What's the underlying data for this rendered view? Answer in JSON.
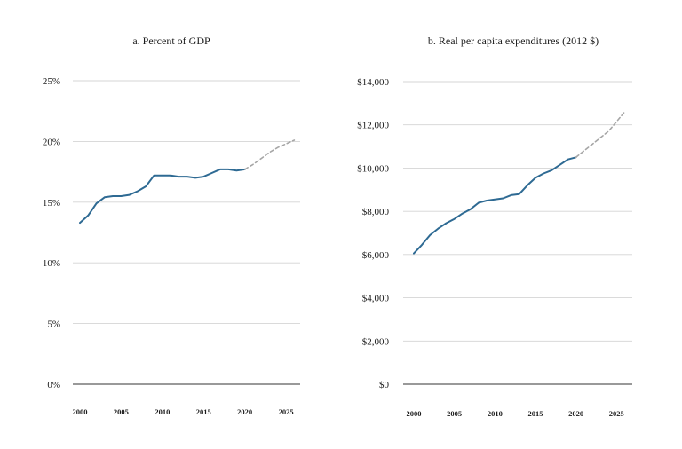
{
  "chart_data": [
    {
      "type": "line",
      "title": "a. Percent of GDP",
      "y_ticks": [
        "0%",
        "5%",
        "10%",
        "15%",
        "20%",
        "25%"
      ],
      "x_ticks": [
        "2000",
        "2005",
        "2010",
        "2015",
        "2020",
        "2025"
      ],
      "ylim": [
        0,
        25
      ],
      "xlim": [
        2000,
        2026.5
      ],
      "grid": "horizontal",
      "colors": {
        "actual": "#2e6a93",
        "projected": "#a6a6a6"
      },
      "series": [
        {
          "style": "solid",
          "x": [
            2000,
            2001,
            2002,
            2003,
            2004,
            2005,
            2006,
            2007,
            2008,
            2009,
            2010,
            2011,
            2012,
            2013,
            2014,
            2015,
            2016,
            2017,
            2018,
            2019,
            2020
          ],
          "y": [
            13.3,
            13.9,
            14.9,
            15.4,
            15.5,
            15.5,
            15.6,
            15.9,
            16.3,
            17.2,
            17.2,
            17.2,
            17.1,
            17.1,
            17.0,
            17.1,
            17.4,
            17.7,
            17.7,
            17.6,
            17.7
          ]
        },
        {
          "style": "dashed",
          "x": [
            2020,
            2021,
            2022,
            2023,
            2024,
            2025,
            2026
          ],
          "y": [
            17.7,
            18.1,
            18.6,
            19.1,
            19.5,
            19.8,
            20.1
          ]
        }
      ]
    },
    {
      "type": "line",
      "title": "b. Real per capita expenditures (2012 $)",
      "y_ticks": [
        "$0",
        "$2,000",
        "$4,000",
        "$6,000",
        "$8,000",
        "$10,000",
        "$12,000",
        "$14,000"
      ],
      "x_ticks": [
        "2000",
        "2005",
        "2010",
        "2015",
        "2020",
        "2025"
      ],
      "ylim": [
        0,
        14000
      ],
      "xlim": [
        2000,
        2026.5
      ],
      "grid": "horizontal",
      "colors": {
        "actual": "#2e6a93",
        "projected": "#a6a6a6"
      },
      "series": [
        {
          "style": "solid",
          "x": [
            2000,
            2001,
            2002,
            2003,
            2004,
            2005,
            2006,
            2007,
            2008,
            2009,
            2010,
            2011,
            2012,
            2013,
            2014,
            2015,
            2016,
            2017,
            2018,
            2019,
            2020
          ],
          "y": [
            6050,
            6450,
            6900,
            7200,
            7450,
            7650,
            7900,
            8100,
            8400,
            8500,
            8550,
            8600,
            8750,
            8800,
            9200,
            9550,
            9750,
            9900,
            10150,
            10400,
            10500
          ]
        },
        {
          "style": "dashed",
          "x": [
            2020,
            2021,
            2022,
            2023,
            2024,
            2025,
            2026
          ],
          "y": [
            10500,
            10800,
            11100,
            11400,
            11700,
            12150,
            12600
          ]
        }
      ]
    }
  ]
}
